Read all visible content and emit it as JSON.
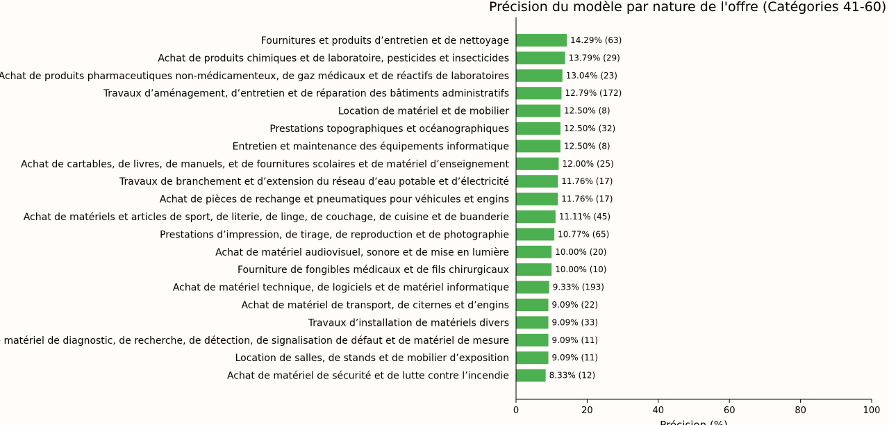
{
  "chart_data": {
    "type": "bar",
    "orientation": "horizontal",
    "title": "Précision du modèle par nature de l'offre (Catégories 41-60)",
    "xlabel": "Précision (%)",
    "ylabel": "",
    "xlim": [
      0,
      100
    ],
    "xticks": [
      "0",
      "20",
      "40",
      "60",
      "80",
      "100"
    ],
    "grid": false,
    "bar_color": "#4caf50",
    "categories": [
      "Fournitures et produits d’entretien et de nettoyage",
      "Achat de produits chimiques et de laboratoire, pesticides et insecticides",
      "Achat de produits pharmaceutiques non-médicamenteux, de gaz médicaux et de réactifs de laboratoires",
      "Travaux d’aménagement, d’entretien et de réparation des bâtiments administratifs",
      "Location de matériel et de mobilier",
      "Prestations topographiques et océanographiques",
      "Entretien et maintenance des équipements informatique",
      "Achat de cartables, de livres, de manuels, et de fournitures scolaires et de matériel d’enseignement",
      "Travaux de branchement et d’extension du réseau d’eau potable et d’électricité",
      "Achat de pièces de rechange et pneumatiques pour véhicules et engins",
      "Achat de matériels et articles de sport, de literie, de linge, de couchage, de cuisine et de buanderie",
      "Prestations d’impression, de tirage, de reproduction et de photographie",
      "Achat de matériel audiovisuel, sonore et de mise en lumière",
      "Fourniture de fongibles médicaux et de fils chirurgicaux",
      "Achat de matériel technique, de logiciels et de matériel informatique",
      "Achat de matériel de transport, de citernes et d’engins",
      "Travaux d’installation de matériels divers",
      "Achat de matériel de diagnostic, de recherche, de détection, de signalisation de défaut et de matériel de mesure",
      "Location de salles, de stands et de mobilier d’exposition",
      "Achat de matériel de sécurité et de lutte contre l’incendie"
    ],
    "values": [
      14.29,
      13.79,
      13.04,
      12.79,
      12.5,
      12.5,
      12.5,
      12.0,
      11.76,
      11.76,
      11.11,
      10.77,
      10.0,
      10.0,
      9.33,
      9.09,
      9.09,
      9.09,
      9.09,
      8.33
    ],
    "bar_labels": [
      "14.29% (63)",
      "13.79% (29)",
      "13.04% (23)",
      "12.79% (172)",
      "12.50% (8)",
      "12.50% (32)",
      "12.50% (8)",
      "12.00% (25)",
      "11.76% (17)",
      "11.76% (17)",
      "11.11% (45)",
      "10.77% (65)",
      "10.00% (20)",
      "10.00% (10)",
      "9.33% (193)",
      "9.09% (22)",
      "9.09% (33)",
      "9.09% (11)",
      "9.09% (11)",
      "8.33% (12)"
    ]
  }
}
